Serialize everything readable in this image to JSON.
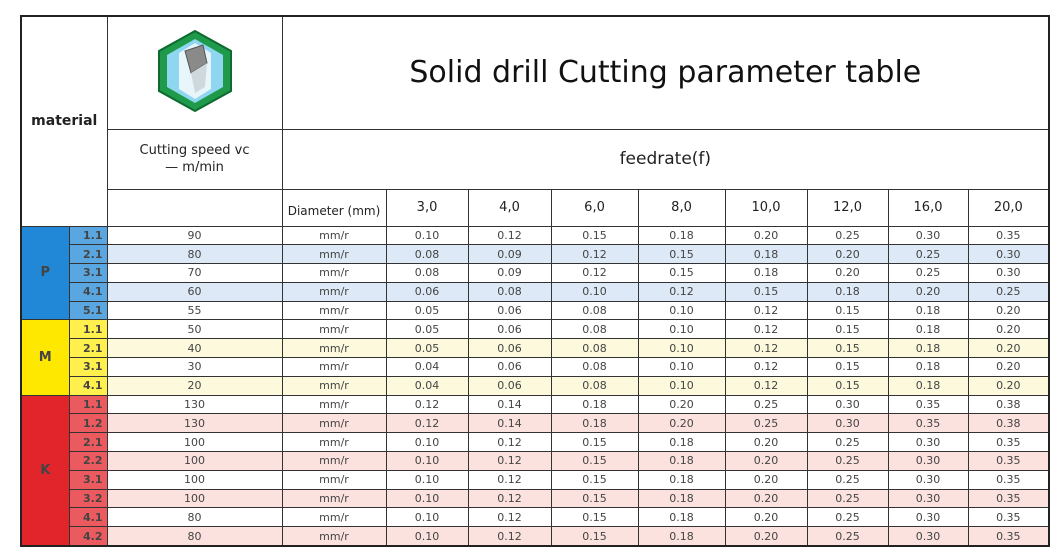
{
  "header": {
    "material": "material",
    "title": "Solid drill Cutting parameter table",
    "speed_label": [
      "Cutting speed vc",
      "— m/min"
    ],
    "feed_label": "feedrate(f)",
    "diameter_label": "Diameter (mm)",
    "diameters": [
      "3,0",
      "4,0",
      "6,0",
      "8,0",
      "10,0",
      "12,0",
      "16,0",
      "20,0"
    ]
  },
  "groups": [
    {
      "name": "P",
      "rows": [
        {
          "code": "1.1",
          "speed": "90",
          "unit": "mm/r",
          "feeds": [
            "0.10",
            "0.12",
            "0.15",
            "0.18",
            "0.20",
            "0.25",
            "0.30",
            "0.35"
          ]
        },
        {
          "code": "2.1",
          "speed": "80",
          "unit": "mm/r",
          "feeds": [
            "0.08",
            "0.09",
            "0.12",
            "0.15",
            "0.18",
            "0.20",
            "0.25",
            "0.30"
          ]
        },
        {
          "code": "3.1",
          "speed": "70",
          "unit": "mm/r",
          "feeds": [
            "0.08",
            "0.09",
            "0.12",
            "0.15",
            "0.18",
            "0.20",
            "0.25",
            "0.30"
          ]
        },
        {
          "code": "4.1",
          "speed": "60",
          "unit": "mm/r",
          "feeds": [
            "0.06",
            "0.08",
            "0.10",
            "0.12",
            "0.15",
            "0.18",
            "0.20",
            "0.25"
          ]
        },
        {
          "code": "5.1",
          "speed": "55",
          "unit": "mm/r",
          "feeds": [
            "0.05",
            "0.06",
            "0.08",
            "0.10",
            "0.12",
            "0.15",
            "0.18",
            "0.20"
          ]
        }
      ]
    },
    {
      "name": "M",
      "rows": [
        {
          "code": "1.1",
          "speed": "50",
          "unit": "mm/r",
          "feeds": [
            "0.05",
            "0.06",
            "0.08",
            "0.10",
            "0.12",
            "0.15",
            "0.18",
            "0.20"
          ]
        },
        {
          "code": "2.1",
          "speed": "40",
          "unit": "mm/r",
          "feeds": [
            "0.05",
            "0.06",
            "0.08",
            "0.10",
            "0.12",
            "0.15",
            "0.18",
            "0.20"
          ]
        },
        {
          "code": "3.1",
          "speed": "30",
          "unit": "mm/r",
          "feeds": [
            "0.04",
            "0.06",
            "0.08",
            "0.10",
            "0.12",
            "0.15",
            "0.18",
            "0.20"
          ]
        },
        {
          "code": "4.1",
          "speed": "20",
          "unit": "mm/r",
          "feeds": [
            "0.04",
            "0.06",
            "0.08",
            "0.10",
            "0.12",
            "0.15",
            "0.18",
            "0.20"
          ]
        }
      ]
    },
    {
      "name": "K",
      "rows": [
        {
          "code": "1.1",
          "speed": "130",
          "unit": "mm/r",
          "feeds": [
            "0.12",
            "0.14",
            "0.18",
            "0.20",
            "0.25",
            "0.30",
            "0.35",
            "0.38"
          ]
        },
        {
          "code": "1.2",
          "speed": "130",
          "unit": "mm/r",
          "feeds": [
            "0.12",
            "0.14",
            "0.18",
            "0.20",
            "0.25",
            "0.30",
            "0.35",
            "0.38"
          ]
        },
        {
          "code": "2.1",
          "speed": "100",
          "unit": "mm/r",
          "feeds": [
            "0.10",
            "0.12",
            "0.15",
            "0.18",
            "0.20",
            "0.25",
            "0.30",
            "0.35"
          ]
        },
        {
          "code": "2.2",
          "speed": "100",
          "unit": "mm/r",
          "feeds": [
            "0.10",
            "0.12",
            "0.15",
            "0.18",
            "0.20",
            "0.25",
            "0.30",
            "0.35"
          ]
        },
        {
          "code": "3.1",
          "speed": "100",
          "unit": "mm/r",
          "feeds": [
            "0.10",
            "0.12",
            "0.15",
            "0.18",
            "0.20",
            "0.25",
            "0.30",
            "0.35"
          ]
        },
        {
          "code": "3.2",
          "speed": "100",
          "unit": "mm/r",
          "feeds": [
            "0.10",
            "0.12",
            "0.15",
            "0.18",
            "0.20",
            "0.25",
            "0.30",
            "0.35"
          ]
        },
        {
          "code": "4.1",
          "speed": "80",
          "unit": "mm/r",
          "feeds": [
            "0.10",
            "0.12",
            "0.15",
            "0.18",
            "0.20",
            "0.25",
            "0.30",
            "0.35"
          ]
        },
        {
          "code": "4.2",
          "speed": "80",
          "unit": "mm/r",
          "feeds": [
            "0.10",
            "0.12",
            "0.15",
            "0.18",
            "0.20",
            "0.25",
            "0.30",
            "0.35"
          ]
        }
      ]
    }
  ]
}
